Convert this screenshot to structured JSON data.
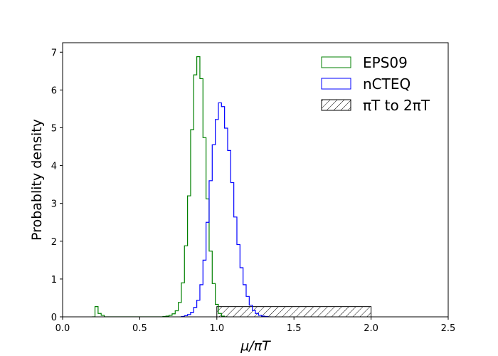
{
  "chart_data": {
    "type": "histogram",
    "xlabel": "μ/πT",
    "ylabel": "Probablity density",
    "xlim": [
      0.0,
      2.5
    ],
    "ylim": [
      0.0,
      7.25
    ],
    "xticks": [
      "0.0",
      "0.5",
      "1.0",
      "1.5",
      "2.0",
      "2.5"
    ],
    "xtick_values": [
      0.0,
      0.5,
      1.0,
      1.5,
      2.0,
      2.5
    ],
    "yticks": [
      "0",
      "1",
      "2",
      "3",
      "4",
      "5",
      "6",
      "7"
    ],
    "ytick_values": [
      0,
      1,
      2,
      3,
      4,
      5,
      6,
      7
    ],
    "grid": false,
    "legend_position": "top-right",
    "bin_width": 0.02,
    "series": [
      {
        "name": "EPS09",
        "color": "#008000",
        "style": "step",
        "bin_start": 0.19,
        "values": [
          0.0,
          0.27,
          0.09,
          0.04,
          0.0,
          0,
          0,
          0,
          0,
          0,
          0,
          0,
          0,
          0,
          0,
          0,
          0,
          0,
          0,
          0,
          0,
          0,
          0,
          0.01,
          0.02,
          0.04,
          0.08,
          0.16,
          0.38,
          0.9,
          1.88,
          3.2,
          4.95,
          6.4,
          6.88,
          6.3,
          4.74,
          3.12,
          1.74,
          0.88,
          0.33,
          0.09,
          0.02,
          0.0
        ]
      },
      {
        "name": "nCTEQ",
        "color": "#0000ff",
        "style": "step",
        "bin_start": 0.77,
        "values": [
          0.01,
          0.03,
          0.06,
          0.12,
          0.25,
          0.44,
          0.85,
          1.5,
          2.5,
          3.6,
          4.55,
          5.22,
          5.66,
          5.56,
          4.99,
          4.4,
          3.55,
          2.64,
          1.91,
          1.3,
          0.85,
          0.54,
          0.31,
          0.17,
          0.09,
          0.04,
          0.02,
          0.01,
          0.0
        ]
      },
      {
        "name": "πT to 2πT",
        "style": "hatched-bar",
        "x_start": 1.0,
        "x_end": 2.0,
        "height": 0.27
      }
    ]
  }
}
